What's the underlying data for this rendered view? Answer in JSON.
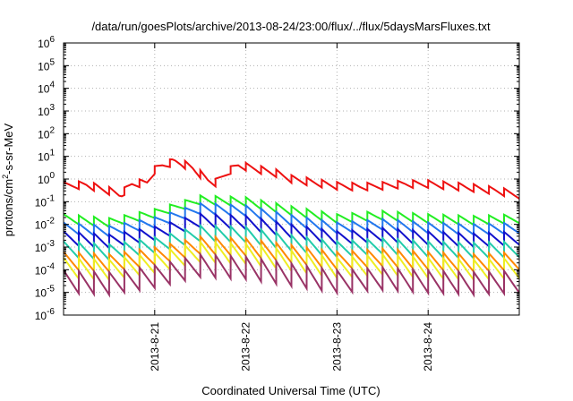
{
  "chart_data": {
    "type": "line",
    "title": "/data/run/goesPlots/archive/2013-08-24/23:00/flux/../flux/5daysMarsFluxes.txt",
    "xlabel": "Coordinated Universal Time (UTC)",
    "ylabel_main": "protons/cm",
    "ylabel_sup": "2",
    "ylabel_rest": "-s-sr-MeV",
    "x_range": [
      "2013-08-20T00:00",
      "2013-08-25T00:00"
    ],
    "x_ticks": [
      "2013-8-21",
      "2013-8-22",
      "2013-8-23",
      "2013-8-24"
    ],
    "y_scale": "log",
    "y_range": [
      1e-06,
      1000000.0
    ],
    "y_ticks": [
      {
        "base": "10",
        "exp": "-6"
      },
      {
        "base": "10",
        "exp": "-5"
      },
      {
        "base": "10",
        "exp": "-4"
      },
      {
        "base": "10",
        "exp": "-3"
      },
      {
        "base": "10",
        "exp": "-2"
      },
      {
        "base": "10",
        "exp": "-1"
      },
      {
        "base": "10",
        "exp": "0"
      },
      {
        "base": "10",
        "exp": "1"
      },
      {
        "base": "10",
        "exp": "2"
      },
      {
        "base": "10",
        "exp": "3"
      },
      {
        "base": "10",
        "exp": "4"
      },
      {
        "base": "10",
        "exp": "5"
      },
      {
        "base": "10",
        "exp": "6"
      }
    ],
    "grid": true,
    "sawtooth_period_hours": 4,
    "series": [
      {
        "color": "#ee1111",
        "baseline": [
          [
            0,
            0.5
          ],
          [
            6,
            0.55
          ],
          [
            12,
            0.3
          ],
          [
            15,
            0.2
          ],
          [
            18,
            0.6
          ],
          [
            22,
            0.7
          ],
          [
            24,
            2.5
          ],
          [
            26,
            4
          ],
          [
            28,
            5
          ],
          [
            29,
            6
          ],
          [
            31,
            5
          ],
          [
            34,
            3
          ],
          [
            38,
            0.9
          ],
          [
            40,
            0.7
          ],
          [
            44,
            2.5
          ],
          [
            46,
            4
          ],
          [
            48,
            3.5
          ],
          [
            52,
            2.5
          ],
          [
            56,
            1.8
          ],
          [
            60,
            1.0
          ],
          [
            66,
            0.7
          ],
          [
            72,
            0.5
          ],
          [
            78,
            0.45
          ],
          [
            84,
            0.5
          ],
          [
            90,
            0.6
          ],
          [
            96,
            0.6
          ],
          [
            102,
            0.5
          ],
          [
            108,
            0.4
          ],
          [
            114,
            0.3
          ],
          [
            120,
            0.2
          ]
        ],
        "amplitude": 2.2
      },
      {
        "color": "#22ee22",
        "baseline": [
          [
            0,
            0.018
          ],
          [
            12,
            0.012
          ],
          [
            24,
            0.03
          ],
          [
            36,
            0.12
          ],
          [
            48,
            0.1
          ],
          [
            60,
            0.04
          ],
          [
            72,
            0.018
          ],
          [
            84,
            0.025
          ],
          [
            96,
            0.018
          ],
          [
            108,
            0.015
          ],
          [
            120,
            0.018
          ]
        ],
        "amplitude": 2.5
      },
      {
        "color": "#2277ee",
        "baseline": [
          [
            0,
            0.007
          ],
          [
            12,
            0.005
          ],
          [
            24,
            0.012
          ],
          [
            36,
            0.05
          ],
          [
            48,
            0.04
          ],
          [
            60,
            0.015
          ],
          [
            72,
            0.007
          ],
          [
            84,
            0.01
          ],
          [
            96,
            0.007
          ],
          [
            108,
            0.006
          ],
          [
            120,
            0.007
          ]
        ],
        "amplitude": 3
      },
      {
        "color": "#1111cc",
        "baseline": [
          [
            0,
            0.0025
          ],
          [
            12,
            0.0018
          ],
          [
            24,
            0.004
          ],
          [
            36,
            0.015
          ],
          [
            48,
            0.012
          ],
          [
            60,
            0.005
          ],
          [
            72,
            0.0025
          ],
          [
            84,
            0.0035
          ],
          [
            96,
            0.0025
          ],
          [
            108,
            0.002
          ],
          [
            120,
            0.0025
          ]
        ],
        "amplitude": 4
      },
      {
        "color": "#22ccaa",
        "baseline": [
          [
            0,
            0.0008
          ],
          [
            12,
            0.0006
          ],
          [
            24,
            0.0012
          ],
          [
            36,
            0.004
          ],
          [
            48,
            0.0035
          ],
          [
            60,
            0.0015
          ],
          [
            72,
            0.0008
          ],
          [
            84,
            0.0011
          ],
          [
            96,
            0.0008
          ],
          [
            108,
            0.0007
          ],
          [
            120,
            0.0008
          ]
        ],
        "amplitude": 5
      },
      {
        "color": "#ff8800",
        "baseline": [
          [
            0,
            0.00025
          ],
          [
            12,
            0.0002
          ],
          [
            24,
            0.0004
          ],
          [
            36,
            0.0012
          ],
          [
            48,
            0.001
          ],
          [
            60,
            0.0005
          ],
          [
            72,
            0.00025
          ],
          [
            84,
            0.00035
          ],
          [
            96,
            0.00025
          ],
          [
            108,
            0.0002
          ],
          [
            120,
            0.00025
          ]
        ],
        "amplitude": 6
      },
      {
        "color": "#eeee22",
        "baseline": [
          [
            0,
            0.00012
          ],
          [
            12,
            0.0001
          ],
          [
            24,
            0.0002
          ],
          [
            36,
            0.0006
          ],
          [
            48,
            0.0005
          ],
          [
            60,
            0.00025
          ],
          [
            72,
            0.00012
          ],
          [
            84,
            0.00017
          ],
          [
            96,
            0.00012
          ],
          [
            108,
            0.0001
          ],
          [
            120,
            0.00012
          ]
        ],
        "amplitude": 8
      },
      {
        "color": "#993366",
        "baseline": [
          [
            0,
            3e-05
          ],
          [
            12,
            2.5e-05
          ],
          [
            24,
            5e-05
          ],
          [
            36,
            0.00015
          ],
          [
            48,
            0.00012
          ],
          [
            60,
            6e-05
          ],
          [
            72,
            3e-05
          ],
          [
            84,
            4e-05
          ],
          [
            96,
            3e-05
          ],
          [
            108,
            2.5e-05
          ],
          [
            120,
            3e-05
          ]
        ],
        "amplitude": 10
      }
    ]
  }
}
